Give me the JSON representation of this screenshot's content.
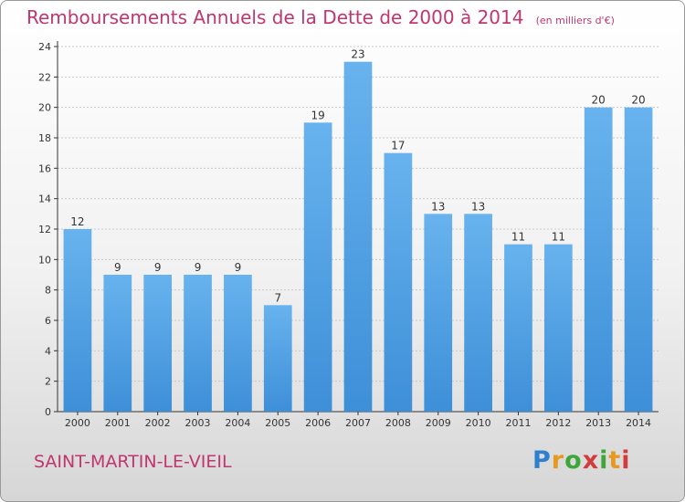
{
  "title": "Remboursements Annuels de la Dette de 2000 à 2014",
  "unit": "(en milliers d'€)",
  "commune": "SAINT-MARTIN-LE-VIEIL",
  "logo_text": "Proxiti",
  "colors": {
    "title": "#c0366e",
    "bar": "#3d8fd8",
    "bar_light": "#68b3ee",
    "axis": "#333333",
    "grid": "#c8c8c8"
  },
  "chart_data": {
    "type": "bar",
    "title": "Remboursements Annuels de la Dette de 2000 à 2014",
    "xlabel": "",
    "ylabel": "",
    "categories": [
      "2000",
      "2001",
      "2002",
      "2003",
      "2004",
      "2005",
      "2006",
      "2007",
      "2008",
      "2009",
      "2010",
      "2011",
      "2012",
      "2013",
      "2014"
    ],
    "values": [
      12,
      9,
      9,
      9,
      9,
      7,
      19,
      23,
      17,
      13,
      13,
      11,
      11,
      20,
      20
    ],
    "ylim": [
      0,
      24
    ],
    "yticks": [
      0,
      2,
      4,
      6,
      8,
      10,
      12,
      14,
      16,
      18,
      20,
      22,
      24
    ],
    "grid": true,
    "data_labels": true
  }
}
